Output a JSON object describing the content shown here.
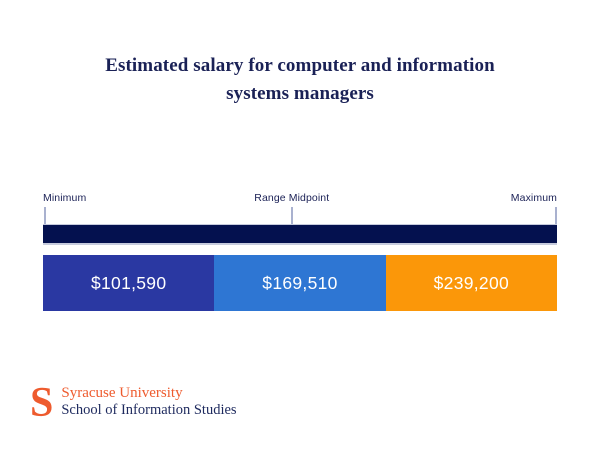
{
  "title": "Estimated salary for computer and information systems managers",
  "chart_data": {
    "type": "bar",
    "subtype": "salary-range-segmented-bar",
    "title": "Estimated salary for computer and information systems managers",
    "orientation": "horizontal",
    "categories": [
      "Minimum",
      "Range Midpoint",
      "Maximum"
    ],
    "values": [
      101590,
      169510,
      239200
    ],
    "segments": [
      {
        "category": "Minimum",
        "label": "$101,590",
        "value": 101590,
        "color": "#2a38a2"
      },
      {
        "category": "Range Midpoint",
        "label": "$169,510",
        "value": 169510,
        "color": "#2e76d3"
      },
      {
        "category": "Maximum",
        "label": "$239,200",
        "value": 239200,
        "color": "#fb9709"
      }
    ],
    "range_bar_color": "#04114f",
    "tick_color": "#a9b1cf",
    "legend": "none",
    "grid": false
  },
  "logo": {
    "mark": "S",
    "line1": "Syracuse University",
    "line2": "School of Information Studies",
    "mark_color": "#ee5b2e",
    "line1_color": "#ee5b2e",
    "line2_color": "#1e2a5e"
  }
}
